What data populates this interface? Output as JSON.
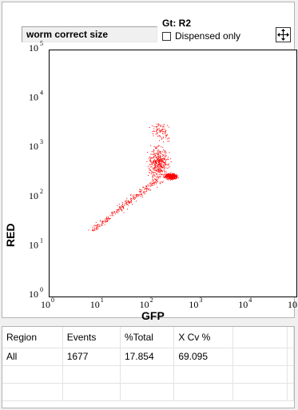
{
  "gate": {
    "selected_name": "worm correct size",
    "label": "Gt: R2",
    "dispensed_only_label": "Dispensed only",
    "dispensed_only_checked": false
  },
  "toolbar": {
    "move_icon": "move-arrows-icon"
  },
  "chart_data": {
    "type": "scatter",
    "xlabel": "GFP",
    "ylabel": "RED",
    "x_scale": "log",
    "y_scale": "log",
    "xlim": [
      1,
      100000
    ],
    "ylim": [
      1,
      100000
    ],
    "x_ticks": [
      {
        "base": "10",
        "exp": "0"
      },
      {
        "base": "10",
        "exp": "1"
      },
      {
        "base": "10",
        "exp": "2"
      },
      {
        "base": "10",
        "exp": "3"
      },
      {
        "base": "10",
        "exp": "4"
      },
      {
        "base": "10",
        "exp": "5"
      }
    ],
    "y_ticks": [
      {
        "base": "10",
        "exp": "0"
      },
      {
        "base": "10",
        "exp": "1"
      },
      {
        "base": "10",
        "exp": "2"
      },
      {
        "base": "10",
        "exp": "3"
      },
      {
        "base": "10",
        "exp": "4"
      },
      {
        "base": "10",
        "exp": "5"
      }
    ],
    "point_color": "#ff0000",
    "clusters": [
      {
        "x_log_range": [
          1.95,
          2.55
        ],
        "y_log_range": [
          2.1,
          3.2
        ],
        "density": "high"
      },
      {
        "x_log_range": [
          2.3,
          2.7
        ],
        "y_log_range": [
          2.3,
          2.5
        ],
        "density": "high"
      },
      {
        "x_log_range": [
          0.9,
          2.2
        ],
        "y_log_range": [
          1.3,
          2.3
        ],
        "density": "medium"
      },
      {
        "x_log_range": [
          2.0,
          2.6
        ],
        "y_log_range": [
          3.0,
          3.6
        ],
        "density": "low"
      }
    ]
  },
  "stats_table": {
    "headers": [
      "Region",
      "Events",
      "%Total",
      "X Cv %",
      ""
    ],
    "rows": [
      [
        "All",
        "1677",
        "17.854",
        "69.095",
        ""
      ],
      [
        "",
        "",
        "",
        "",
        ""
      ],
      [
        "",
        "",
        "",
        "",
        ""
      ]
    ]
  }
}
